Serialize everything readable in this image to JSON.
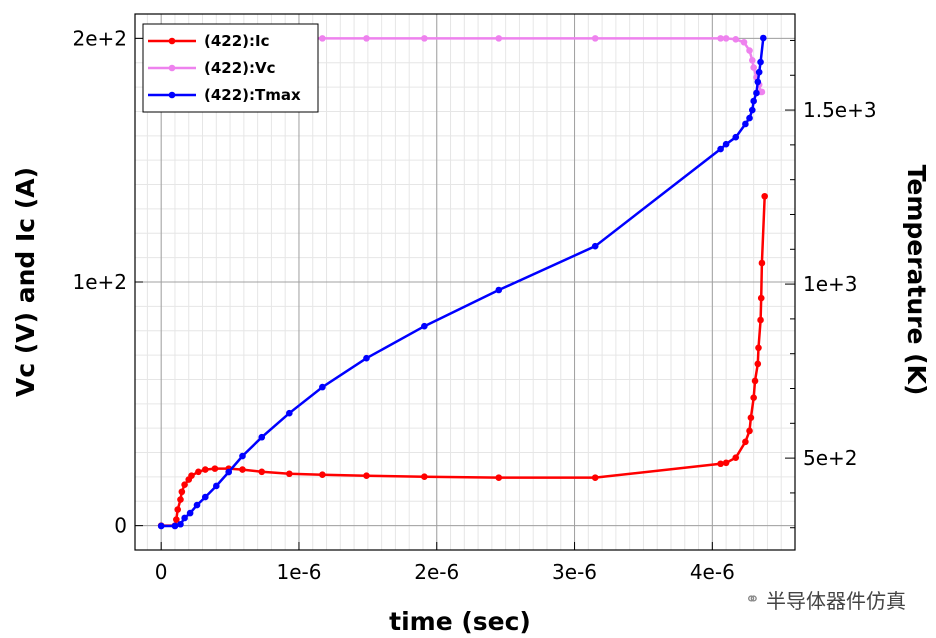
{
  "chart_data": {
    "type": "line",
    "xlabel": "time (sec)",
    "ylabel": "Vc (V) and Ic (A)",
    "y2label": "Temperature (K)",
    "xlim": [
      -1.9e-07,
      4.6e-06
    ],
    "ylim": [
      -10,
      210
    ],
    "y2lim": [
      236,
      1776
    ],
    "grid": true,
    "legend_position": "top-left",
    "x_ticks": [
      "0",
      "1e-6",
      "2e-6",
      "3e-6",
      "4e-6"
    ],
    "x_tick_values": [
      0,
      1e-06,
      2e-06,
      3e-06,
      4e-06
    ],
    "y_ticks": [
      "0",
      "1e+2",
      "2e+2"
    ],
    "y_tick_values": [
      0,
      100,
      200
    ],
    "y2_ticks": [
      "5e+2",
      "1e+3",
      "1.5e+3"
    ],
    "y2_tick_values": [
      500,
      1000,
      1500
    ],
    "series": [
      {
        "name": "(422):Ic",
        "axis": "left",
        "color": "#ff0000",
        "x": [
          0,
          1e-07,
          1.1e-07,
          1.2e-07,
          1.4e-07,
          1.5e-07,
          1.7e-07,
          2e-07,
          2.2e-07,
          2.7e-07,
          3.2e-07,
          3.9e-07,
          4.9e-07,
          5.9e-07,
          7.3e-07,
          9.3e-07,
          1.17e-06,
          1.49e-06,
          1.91e-06,
          2.45e-06,
          3.15e-06,
          4.06e-06,
          4.1e-06,
          4.17e-06,
          4.24e-06,
          4.27e-06,
          4.28e-06,
          4.3e-06,
          4.31e-06,
          4.33e-06,
          4.335e-06,
          4.35e-06,
          4.355e-06,
          4.36e-06,
          4.38e-06
        ],
        "y": [
          0,
          0,
          2.5,
          6.6,
          10.7,
          13.9,
          16.8,
          18.9,
          20.5,
          22.1,
          23.0,
          23.4,
          23.4,
          23.0,
          22.1,
          21.3,
          20.9,
          20.5,
          20.1,
          19.7,
          19.7,
          25.4,
          25.8,
          27.9,
          34.4,
          38.9,
          44.3,
          52.5,
          59.4,
          66.4,
          73.0,
          84.4,
          93.4,
          107.8,
          135.2
        ]
      },
      {
        "name": "(422):Vc",
        "axis": "left",
        "color": "#ee82ee",
        "x": [
          0,
          1.17e-06,
          1.49e-06,
          1.91e-06,
          2.45e-06,
          3.15e-06,
          4.06e-06,
          4.1e-06,
          4.17e-06,
          4.23e-06,
          4.27e-06,
          4.29e-06,
          4.3e-06,
          4.32e-06,
          4.34e-06,
          4.35e-06,
          4.36e-06
        ],
        "y": [
          200,
          200,
          200,
          200,
          200,
          200,
          200,
          200,
          199.6,
          198.4,
          195,
          191,
          188,
          184,
          181,
          178,
          178
        ]
      },
      {
        "name": "(422):Tmax",
        "axis": "right",
        "color": "#0000ff",
        "x": [
          0,
          1e-07,
          1.4e-07,
          1.7e-07,
          2.1e-07,
          2.6e-07,
          3.2e-07,
          4e-07,
          4.9e-07,
          5.9e-07,
          7.3e-07,
          9.3e-07,
          1.17e-06,
          1.49e-06,
          1.91e-06,
          2.45e-06,
          3.15e-06,
          4.06e-06,
          4.1e-06,
          4.17e-06,
          4.24e-06,
          4.27e-06,
          4.29e-06,
          4.3e-06,
          4.32e-06,
          4.33e-06,
          4.34e-06,
          4.35e-06,
          4.37e-06
        ],
        "y": [
          305,
          305,
          310,
          328,
          342,
          365,
          388,
          420,
          460,
          506,
          560,
          629,
          704,
          787,
          879,
          983,
          1109,
          1388,
          1402,
          1422,
          1460,
          1477,
          1500,
          1526,
          1549,
          1581,
          1609,
          1638,
          1707
        ]
      }
    ]
  },
  "watermark": {
    "text": "半导体器件仿真",
    "icon": "wechat-icon"
  }
}
